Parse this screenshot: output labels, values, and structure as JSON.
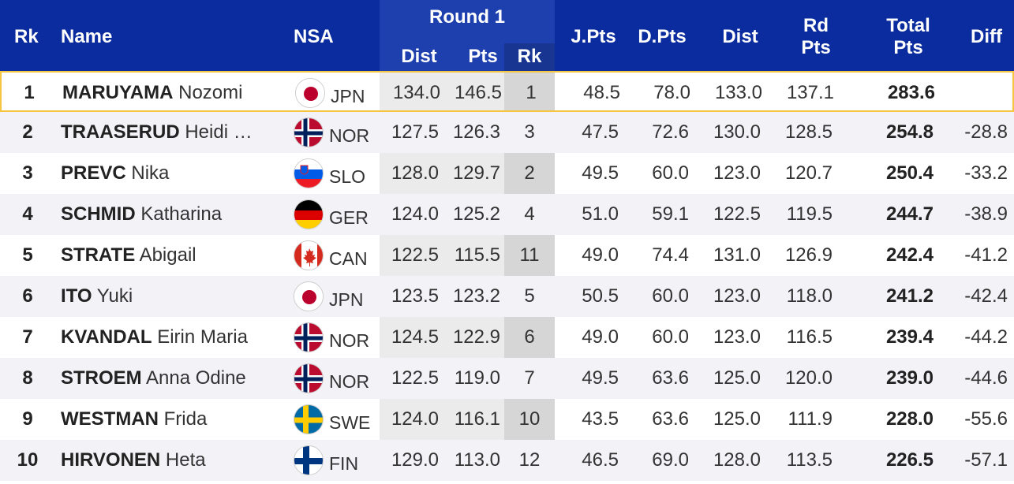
{
  "header": {
    "rk": "Rk",
    "name": "Name",
    "nsa": "NSA",
    "round1": "Round 1",
    "r1_dist": "Dist",
    "r1_pts": "Pts",
    "r1_rk": "Rk",
    "jpts": "J.Pts",
    "dpts": "D.Pts",
    "dist": "Dist",
    "rdpts_l1": "Rd",
    "rdpts_l2": "Pts",
    "total_l1": "Total",
    "total_l2": "Pts",
    "diff": "Diff"
  },
  "colors": {
    "header_bg": "#0b2c9e",
    "round_band": "#1e40af",
    "highlight_border": "#f5c542",
    "round_col_bg": "#ebebeb",
    "round_rk_col_bg": "#d6d6d6"
  },
  "rows": [
    {
      "rk": "1",
      "last": "MARUYAMA",
      "first": "Nozomi",
      "flag": "japan-flag-icon",
      "nsa": "JPN",
      "r1_dist": "134.0",
      "r1_pts": "146.5",
      "r1_rk": "1",
      "jpts": "48.5",
      "dpts": "78.0",
      "dist": "133.0",
      "rdpts": "137.1",
      "total": "283.6",
      "diff": ""
    },
    {
      "rk": "2",
      "last": "TRAASERUD",
      "first": "Heidi …",
      "flag": "norway-flag-icon",
      "nsa": "NOR",
      "r1_dist": "127.5",
      "r1_pts": "126.3",
      "r1_rk": "3",
      "jpts": "47.5",
      "dpts": "72.6",
      "dist": "130.0",
      "rdpts": "128.5",
      "total": "254.8",
      "diff": "-28.8"
    },
    {
      "rk": "3",
      "last": "PREVC",
      "first": "Nika",
      "flag": "slovenia-flag-icon",
      "nsa": "SLO",
      "r1_dist": "128.0",
      "r1_pts": "129.7",
      "r1_rk": "2",
      "jpts": "49.5",
      "dpts": "60.0",
      "dist": "123.0",
      "rdpts": "120.7",
      "total": "250.4",
      "diff": "-33.2"
    },
    {
      "rk": "4",
      "last": "SCHMID",
      "first": "Katharina",
      "flag": "germany-flag-icon",
      "nsa": "GER",
      "r1_dist": "124.0",
      "r1_pts": "125.2",
      "r1_rk": "4",
      "jpts": "51.0",
      "dpts": "59.1",
      "dist": "122.5",
      "rdpts": "119.5",
      "total": "244.7",
      "diff": "-38.9"
    },
    {
      "rk": "5",
      "last": "STRATE",
      "first": "Abigail",
      "flag": "canada-flag-icon",
      "nsa": "CAN",
      "r1_dist": "122.5",
      "r1_pts": "115.5",
      "r1_rk": "11",
      "jpts": "49.0",
      "dpts": "74.4",
      "dist": "131.0",
      "rdpts": "126.9",
      "total": "242.4",
      "diff": "-41.2"
    },
    {
      "rk": "6",
      "last": "ITO",
      "first": "Yuki",
      "flag": "japan-flag-icon",
      "nsa": "JPN",
      "r1_dist": "123.5",
      "r1_pts": "123.2",
      "r1_rk": "5",
      "jpts": "50.5",
      "dpts": "60.0",
      "dist": "123.0",
      "rdpts": "118.0",
      "total": "241.2",
      "diff": "-42.4"
    },
    {
      "rk": "7",
      "last": "KVANDAL",
      "first": "Eirin Maria",
      "flag": "norway-flag-icon",
      "nsa": "NOR",
      "r1_dist": "124.5",
      "r1_pts": "122.9",
      "r1_rk": "6",
      "jpts": "49.0",
      "dpts": "60.0",
      "dist": "123.0",
      "rdpts": "116.5",
      "total": "239.4",
      "diff": "-44.2"
    },
    {
      "rk": "8",
      "last": "STROEM",
      "first": "Anna Odine",
      "flag": "norway-flag-icon",
      "nsa": "NOR",
      "r1_dist": "122.5",
      "r1_pts": "119.0",
      "r1_rk": "7",
      "jpts": "49.5",
      "dpts": "63.6",
      "dist": "125.0",
      "rdpts": "120.0",
      "total": "239.0",
      "diff": "-44.6"
    },
    {
      "rk": "9",
      "last": "WESTMAN",
      "first": "Frida",
      "flag": "sweden-flag-icon",
      "nsa": "SWE",
      "r1_dist": "124.0",
      "r1_pts": "116.1",
      "r1_rk": "10",
      "jpts": "43.5",
      "dpts": "63.6",
      "dist": "125.0",
      "rdpts": "111.9",
      "total": "228.0",
      "diff": "-55.6"
    },
    {
      "rk": "10",
      "last": "HIRVONEN",
      "first": "Heta",
      "flag": "finland-flag-icon",
      "nsa": "FIN",
      "r1_dist": "129.0",
      "r1_pts": "113.0",
      "r1_rk": "12",
      "jpts": "46.5",
      "dpts": "69.0",
      "dist": "128.0",
      "rdpts": "113.5",
      "total": "226.5",
      "diff": "-57.1"
    }
  ]
}
